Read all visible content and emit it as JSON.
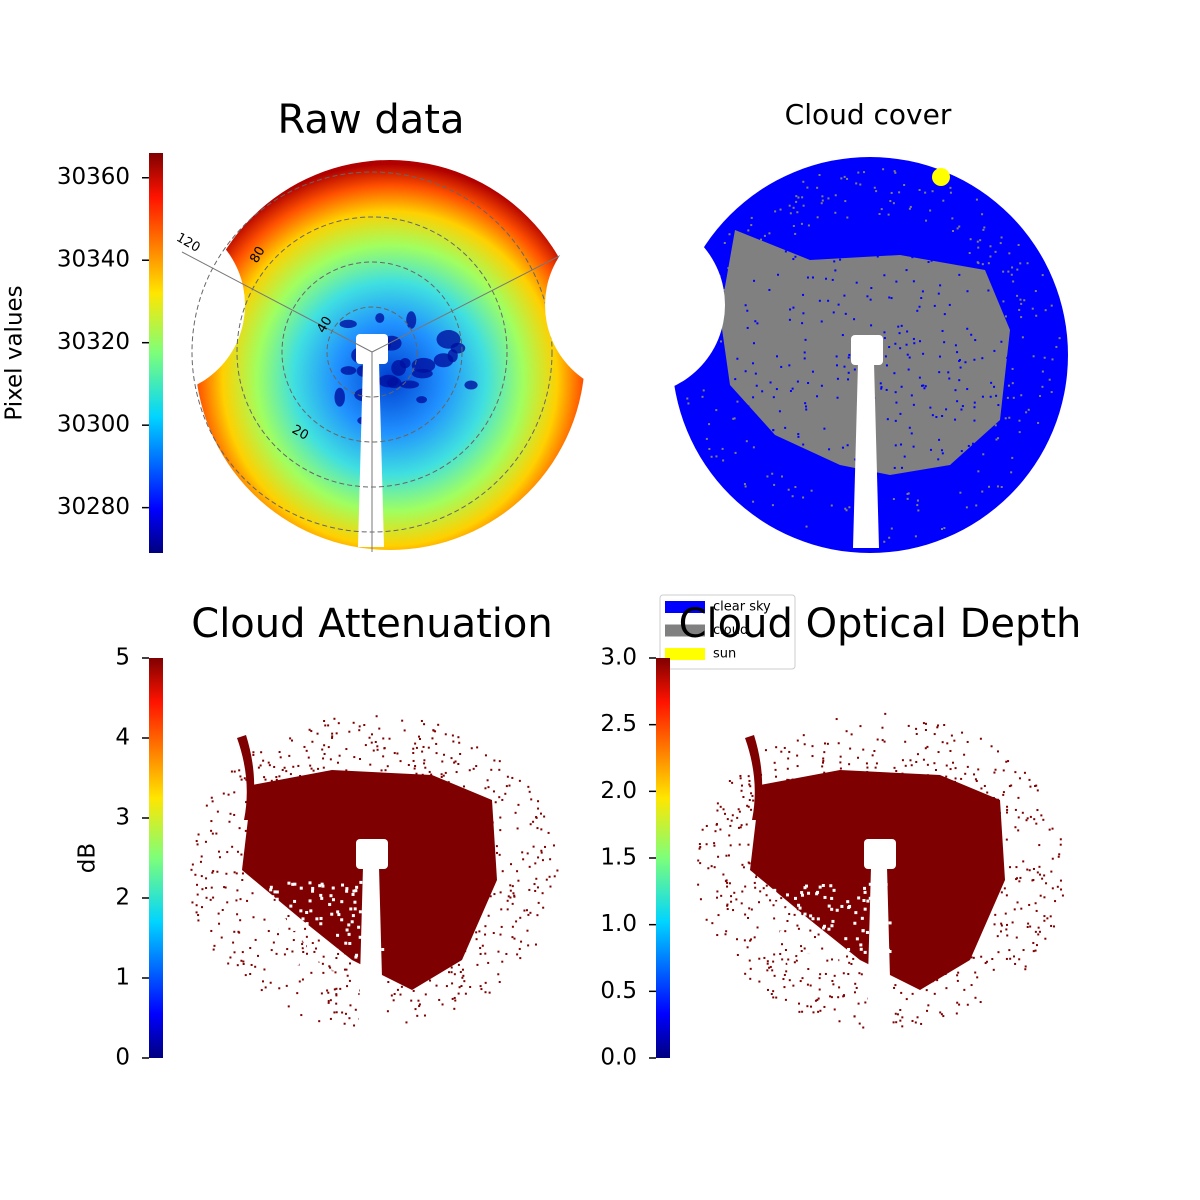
{
  "chart_data": [
    {
      "type": "image",
      "title": "Raw data",
      "colormap": "jet",
      "colorbar": {
        "label": "Pixel values",
        "lim": [
          30269,
          30366
        ],
        "ticks": [
          30280,
          30300,
          30320,
          30340,
          30360
        ]
      },
      "polar_labels": [
        "120",
        "80",
        "40",
        "20"
      ]
    },
    {
      "type": "image",
      "title": "Cloud cover",
      "legend": [
        {
          "name": "clear sky",
          "color": "#0000ff"
        },
        {
          "name": "cloud",
          "color": "#808080"
        },
        {
          "name": "sun",
          "color": "#ffff00"
        }
      ]
    },
    {
      "type": "image",
      "title": "Cloud Attenuation",
      "colormap": "jet",
      "colorbar": {
        "label": "dB",
        "lim": [
          0,
          5
        ],
        "ticks": [
          0,
          1,
          2,
          3,
          4,
          5
        ]
      }
    },
    {
      "type": "image",
      "title": "Cloud Optical Depth",
      "colormap": "jet",
      "colorbar": {
        "lim": [
          0,
          3
        ],
        "ticks": [
          {
            "value": 0,
            "label": "0.0"
          },
          {
            "value": 0.5,
            "label": "0.5"
          },
          {
            "value": 1,
            "label": "1.0"
          },
          {
            "value": 1.5,
            "label": "1.5"
          },
          {
            "value": 2,
            "label": "2.0"
          },
          {
            "value": 2.5,
            "label": "2.5"
          },
          {
            "value": 3,
            "label": "3.0"
          }
        ]
      }
    }
  ]
}
